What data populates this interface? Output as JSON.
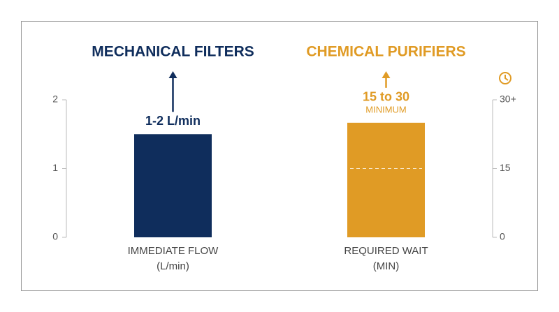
{
  "chart_data": {
    "type": "bar",
    "categories": [
      [
        "IMMEDIATE FLOW",
        "(L/min)"
      ],
      [
        "REQUIRED WAIT",
        "(MIN)"
      ]
    ],
    "series": [
      {
        "name": "MECHANICAL FILTERS",
        "color": "#0f2d5c",
        "values": [
          1.5,
          null
        ],
        "annotation": [
          "1-2 L/min"
        ]
      },
      {
        "name": "CHEMICAL PURIFIERS",
        "color": "#e09b25",
        "values": [
          null,
          25
        ],
        "axis": "y2",
        "annotation": [
          "15 to 30",
          "MINIMUM"
        ]
      }
    ],
    "ylim": [
      0,
      2
    ],
    "yticks": [
      0,
      1,
      2
    ],
    "y2lim": [
      0,
      30
    ],
    "y2ticks": [
      0,
      15,
      {
        "value": 30,
        "label": "30+"
      }
    ]
  }
}
